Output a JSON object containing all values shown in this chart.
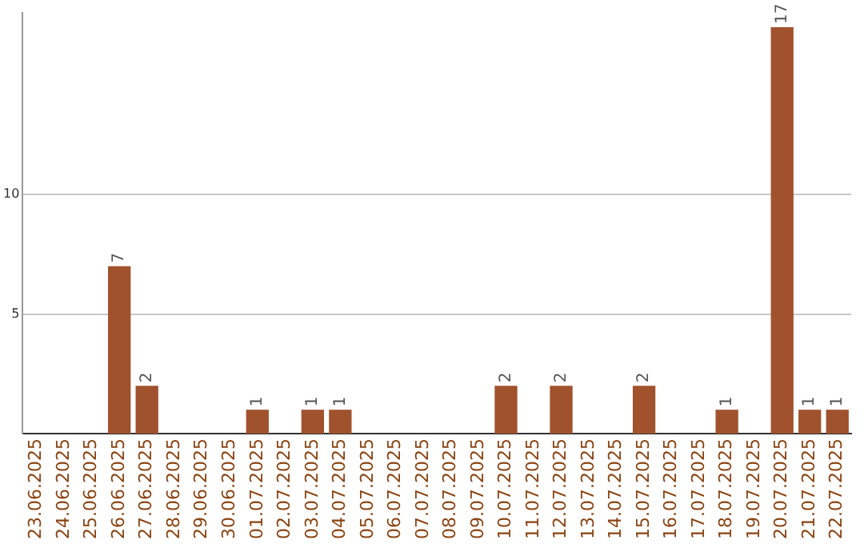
{
  "chart_data": {
    "type": "bar",
    "categories": [
      "23.06.2025",
      "24.06.2025",
      "25.06.2025",
      "26.06.2025",
      "27.06.2025",
      "28.06.2025",
      "29.06.2025",
      "30.06.2025",
      "01.07.2025",
      "02.07.2025",
      "03.07.2025",
      "04.07.2025",
      "05.07.2025",
      "06.07.2025",
      "07.07.2025",
      "08.07.2025",
      "09.07.2025",
      "10.07.2025",
      "11.07.2025",
      "12.07.2025",
      "13.07.2025",
      "14.07.2025",
      "15.07.2025",
      "16.07.2025",
      "17.07.2025",
      "18.07.2025",
      "19.07.2025",
      "20.07.2025",
      "21.07.2025",
      "22.07.2025"
    ],
    "values": [
      0,
      0,
      0,
      7,
      2,
      0,
      0,
      0,
      1,
      0,
      1,
      1,
      0,
      0,
      0,
      0,
      0,
      2,
      0,
      2,
      0,
      0,
      2,
      0,
      0,
      1,
      0,
      17,
      1,
      1
    ],
    "value_labels": [
      null,
      null,
      null,
      "7",
      "2",
      null,
      null,
      null,
      "1",
      null,
      "1",
      "1",
      null,
      null,
      null,
      null,
      null,
      "2",
      null,
      "2",
      null,
      null,
      "2",
      null,
      null,
      "1",
      null,
      "17",
      "1",
      "1"
    ],
    "color": "#a0522d",
    "ylim": [
      0,
      17.6
    ],
    "yticks": [
      5,
      10
    ],
    "grid": "y",
    "legend": false
  }
}
